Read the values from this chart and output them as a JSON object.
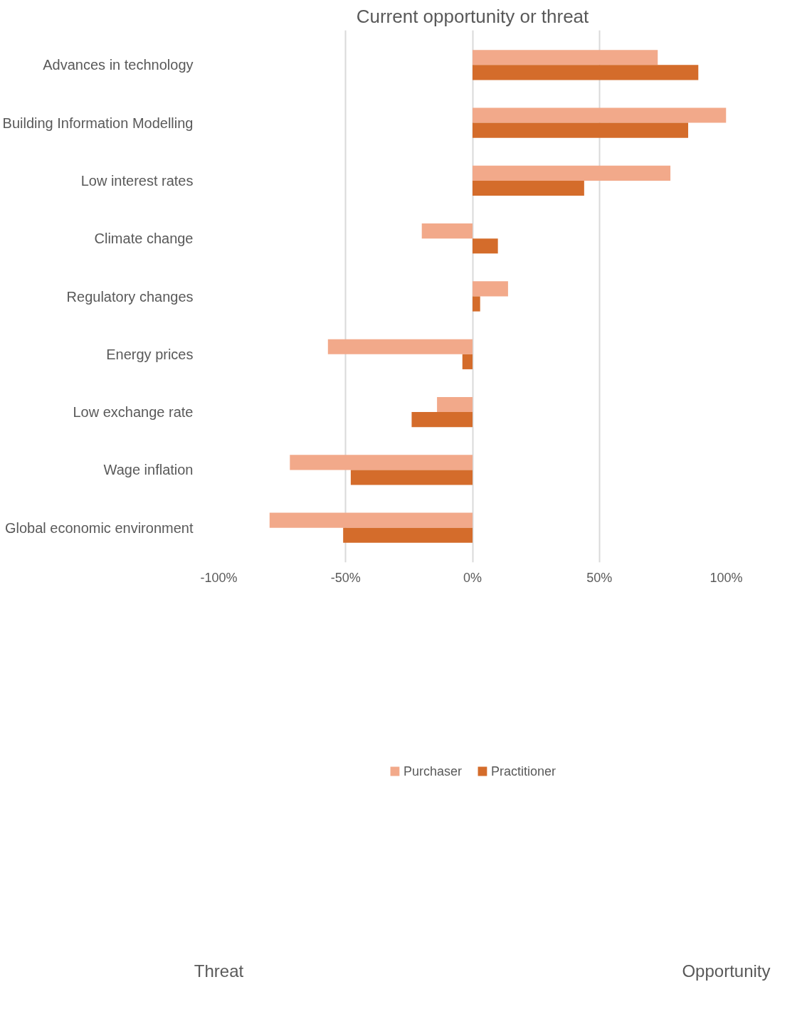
{
  "chart_data": {
    "type": "bar",
    "orientation": "horizontal",
    "title": "Current opportunity or threat",
    "categories": [
      "Advances in technology",
      "Building Information Modelling",
      "Low interest rates",
      "Climate change",
      "Regulatory changes",
      "Energy prices",
      "Low exchange rate",
      "Wage inflation",
      "Global economic environment"
    ],
    "series": [
      {
        "name": "Purchaser",
        "color": "#f2a98a",
        "values": [
          73,
          100,
          78,
          -20,
          14,
          -57,
          -14,
          -72,
          -80
        ]
      },
      {
        "name": "Practitioner",
        "color": "#d46c2b",
        "values": [
          89,
          85,
          44,
          10,
          3,
          -4,
          -24,
          -48,
          -51
        ]
      }
    ],
    "xlim": [
      -100,
      100
    ],
    "xticks": [
      {
        "value": -100,
        "label": "-100%"
      },
      {
        "value": -50,
        "label": "-50%"
      },
      {
        "value": 0,
        "label": "0%"
      },
      {
        "value": 50,
        "label": "50%"
      },
      {
        "value": 100,
        "label": "100%"
      }
    ],
    "grid": "x",
    "legend": "bottom",
    "annotations": [
      "Threat",
      "Opportunity"
    ]
  }
}
